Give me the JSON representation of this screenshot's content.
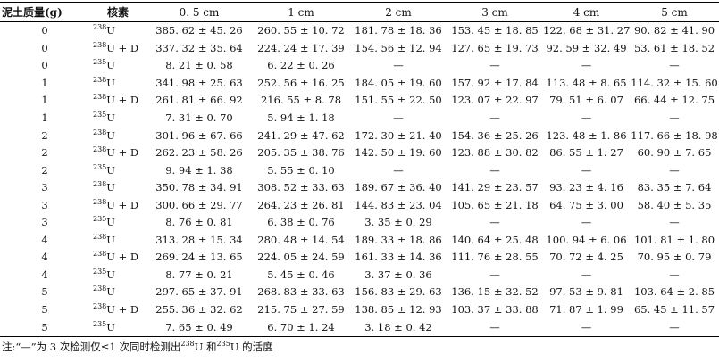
{
  "headers": {
    "mass": "泥土质量(g)",
    "nuclide": "核素",
    "d1": "0. 5 cm",
    "d2": "1 cm",
    "d3": "2 cm",
    "d4": "3 cm",
    "d5": "4 cm",
    "d6": "5 cm"
  },
  "rows": [
    {
      "mass": "0",
      "mass_num": "238",
      "sym": "U",
      "v": [
        "385. 62 ± 45. 26",
        "260. 55 ± 10. 72",
        "181. 78 ± 18. 36",
        "153. 45 ± 18. 85",
        "122. 68 ± 31. 27",
        "90. 82 ± 41. 90"
      ]
    },
    {
      "mass": "0",
      "mass_num": "238",
      "sym": "U + D",
      "v": [
        "337. 32 ± 35. 64",
        "224. 24 ± 17. 39",
        "154. 56 ± 12. 94",
        "127. 65 ± 19. 73",
        "92. 59 ± 32. 49",
        "53. 61 ± 18. 52"
      ]
    },
    {
      "mass": "0",
      "mass_num": "235",
      "sym": "U",
      "v": [
        "8. 21 ± 0. 58",
        "6. 22 ± 0. 26",
        "—",
        "—",
        "—",
        "—"
      ]
    },
    {
      "mass": "1",
      "mass_num": "238",
      "sym": "U",
      "v": [
        "341. 98 ± 25. 63",
        "252. 56 ± 16. 25",
        "184. 05 ± 19. 60",
        "157. 92 ± 17. 84",
        "113. 48 ± 8. 65",
        "114. 32 ± 15. 60"
      ]
    },
    {
      "mass": "1",
      "mass_num": "238",
      "sym": "U + D",
      "v": [
        "261. 81 ± 66. 92",
        "216. 55 ± 8. 78",
        "151. 55 ± 22. 50",
        "123. 07 ± 22. 97",
        "79. 51 ± 6. 07",
        "66. 44 ± 12. 75"
      ]
    },
    {
      "mass": "1",
      "mass_num": "235",
      "sym": "U",
      "v": [
        "7. 31 ± 0. 70",
        "5. 94 ± 1. 18",
        "—",
        "—",
        "—",
        "—"
      ]
    },
    {
      "mass": "2",
      "mass_num": "238",
      "sym": "U",
      "v": [
        "301. 96 ± 67. 66",
        "241. 29 ± 47. 62",
        "172. 30 ± 21. 40",
        "154. 36 ± 25. 26",
        "123. 48 ± 1. 86",
        "117. 66 ± 18. 98"
      ]
    },
    {
      "mass": "2",
      "mass_num": "238",
      "sym": "U + D",
      "v": [
        "262. 23 ± 58. 26",
        "205. 35 ± 38. 76",
        "142. 50 ± 19. 60",
        "123. 88 ± 30. 82",
        "86. 55 ± 1. 27",
        "60. 90 ± 7. 65"
      ]
    },
    {
      "mass": "2",
      "mass_num": "235",
      "sym": "U",
      "v": [
        "9. 94 ± 1. 38",
        "5. 55 ± 0. 10",
        "—",
        "—",
        "—",
        "—"
      ]
    },
    {
      "mass": "3",
      "mass_num": "238",
      "sym": "U",
      "v": [
        "350. 78 ± 34. 91",
        "308. 52 ± 33. 63",
        "189. 67 ± 36. 40",
        "141. 29 ± 23. 57",
        "93. 23 ± 4. 16",
        "83. 35 ± 7. 64"
      ]
    },
    {
      "mass": "3",
      "mass_num": "238",
      "sym": "U + D",
      "v": [
        "300. 66 ± 29. 77",
        "264. 23 ± 26. 81",
        "144. 83 ± 23. 04",
        "105. 65 ± 21. 18",
        "64. 75 ± 3. 00",
        "58. 40 ± 5. 35"
      ]
    },
    {
      "mass": "3",
      "mass_num": "235",
      "sym": "U",
      "v": [
        "8. 76 ± 0. 81",
        "6. 38 ± 0. 76",
        "3. 35 ± 0. 29",
        "—",
        "—",
        "—"
      ]
    },
    {
      "mass": "4",
      "mass_num": "238",
      "sym": "U",
      "v": [
        "313. 28 ± 15. 34",
        "280. 48 ± 14. 54",
        "189. 33 ± 18. 86",
        "140. 64 ± 25. 48",
        "100. 94 ± 6. 06",
        "101. 81 ± 1. 80"
      ]
    },
    {
      "mass": "4",
      "mass_num": "238",
      "sym": "U + D",
      "v": [
        "269. 24 ± 13. 65",
        "224. 05 ± 24. 59",
        "161. 33 ± 14. 36",
        "111. 76 ± 28. 55",
        "70. 72 ± 4. 25",
        "70. 95 ± 0. 79"
      ]
    },
    {
      "mass": "4",
      "mass_num": "235",
      "sym": "U",
      "v": [
        "8. 77 ± 0. 21",
        "5. 45 ± 0. 46",
        "3. 37 ± 0. 36",
        "—",
        "—",
        "—"
      ]
    },
    {
      "mass": "5",
      "mass_num": "238",
      "sym": "U",
      "v": [
        "297. 65 ± 37. 91",
        "268. 83 ± 33. 63",
        "156. 83 ± 29. 63",
        "136. 15 ± 32. 52",
        "97. 53 ± 9. 81",
        "103. 64 ± 2. 85"
      ]
    },
    {
      "mass": "5",
      "mass_num": "238",
      "sym": "U + D",
      "v": [
        "255. 36 ± 32. 62",
        "215. 75 ± 27. 59",
        "138. 85 ± 12. 93",
        "103. 37 ± 33. 88",
        "71. 87 ± 1. 99",
        "65. 45 ± 11. 57"
      ]
    },
    {
      "mass": "5",
      "mass_num": "235",
      "sym": "U",
      "v": [
        "7. 65 ± 0. 49",
        "6. 70 ± 1. 24",
        "3. 18 ± 0. 42",
        "—",
        "—",
        "—"
      ]
    }
  ],
  "note": {
    "prefix": "注:“—”为 3 次检测仅≤1 次同时检测出",
    "iso1": "238",
    "mid": "U 和",
    "iso2": "235",
    "suffix": "U 的活度"
  }
}
